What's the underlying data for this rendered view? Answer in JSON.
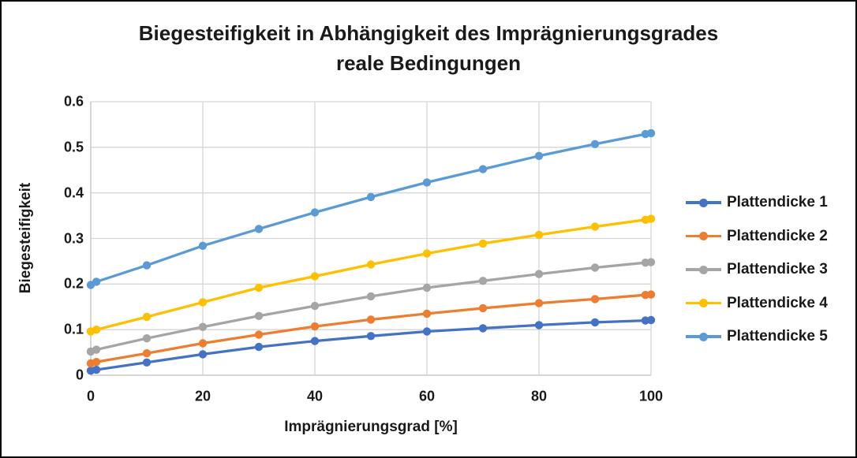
{
  "chart_data": {
    "type": "line",
    "title_line1": "Biegesteifigkeit in Abhängigkeit des Imprägnierungsgrades",
    "title_line2": "reale Bedingungen",
    "xlabel": "Imprägnierungsgrad [%]",
    "ylabel": "Biegesteifigkeit",
    "xlim": [
      0,
      100
    ],
    "ylim": [
      0,
      0.6
    ],
    "grid": true,
    "legend_position": "right",
    "x": [
      0,
      1,
      10,
      20,
      30,
      40,
      50,
      60,
      70,
      80,
      90,
      99,
      100
    ],
    "x_ticks": [
      {
        "v": 0,
        "label": "0"
      },
      {
        "v": 20,
        "label": "20"
      },
      {
        "v": 40,
        "label": "40"
      },
      {
        "v": 60,
        "label": "60"
      },
      {
        "v": 80,
        "label": "80"
      },
      {
        "v": 100,
        "label": "100"
      }
    ],
    "y_ticks": [
      {
        "v": 0,
        "label": "0"
      },
      {
        "v": 0.1,
        "label": "0.1"
      },
      {
        "v": 0.2,
        "label": "0.2"
      },
      {
        "v": 0.3,
        "label": "0.3"
      },
      {
        "v": 0.4,
        "label": "0.4"
      },
      {
        "v": 0.5,
        "label": "0.5"
      },
      {
        "v": 0.6,
        "label": "0.6"
      }
    ],
    "series": [
      {
        "name": "Plattendicke 1",
        "color": "#4472C4",
        "values": [
          0.01,
          0.012,
          0.028,
          0.046,
          0.062,
          0.075,
          0.086,
          0.096,
          0.103,
          0.11,
          0.116,
          0.12,
          0.121
        ]
      },
      {
        "name": "Plattendicke 2",
        "color": "#ED7D31",
        "values": [
          0.026,
          0.029,
          0.048,
          0.07,
          0.089,
          0.107,
          0.122,
          0.135,
          0.147,
          0.158,
          0.167,
          0.176,
          0.177
        ]
      },
      {
        "name": "Plattendicke 3",
        "color": "#A5A5A5",
        "values": [
          0.052,
          0.056,
          0.081,
          0.106,
          0.13,
          0.152,
          0.173,
          0.192,
          0.207,
          0.222,
          0.236,
          0.247,
          0.248
        ]
      },
      {
        "name": "Plattendicke 4",
        "color": "#FFC000",
        "values": [
          0.096,
          0.1,
          0.128,
          0.16,
          0.192,
          0.217,
          0.243,
          0.267,
          0.289,
          0.308,
          0.326,
          0.341,
          0.343
        ]
      },
      {
        "name": "Plattendicke 5",
        "color": "#5B9BD5",
        "values": [
          0.198,
          0.205,
          0.241,
          0.284,
          0.321,
          0.357,
          0.391,
          0.423,
          0.452,
          0.481,
          0.507,
          0.529,
          0.531
        ]
      }
    ]
  },
  "colors": {
    "grid": "#D6D6D6",
    "axis": "#BFBFBF",
    "text": "#1A1A1A",
    "background": "#FFFFFF",
    "border": "#000000"
  }
}
